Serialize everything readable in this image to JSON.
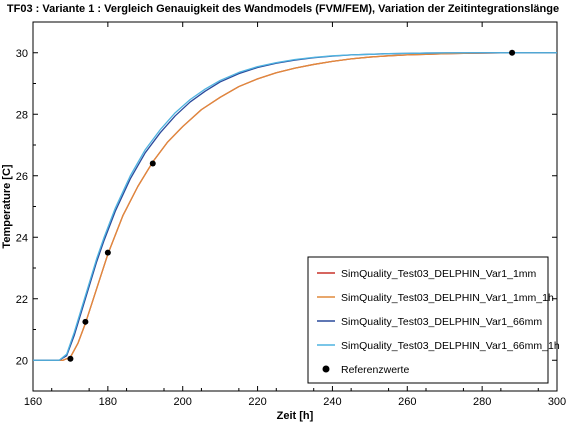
{
  "chart_data": {
    "type": "line",
    "title": "TF03 : Variante 1 : Vergleich Genauigkeit des Wandmodels (FVM/FEM), Variation der Zeitintegrationslänge",
    "xlabel": "Zeit [h]",
    "ylabel": "Temperature [C]",
    "xlim": [
      160,
      300
    ],
    "ylim": [
      19,
      31
    ],
    "xticks": [
      160,
      180,
      200,
      220,
      240,
      260,
      280,
      300
    ],
    "yticks": [
      20,
      22,
      24,
      26,
      28,
      30
    ],
    "grid": false,
    "legend_position": "bottom-right",
    "series": [
      {
        "name": "SimQuality_Test03_DELPHIN_Var1_1mm",
        "color": "#c8322a",
        "x": [
          160,
          168,
          170,
          172,
          174,
          176,
          178,
          180,
          184,
          188,
          192,
          196,
          200,
          205,
          210,
          215,
          220,
          225,
          230,
          235,
          240,
          245,
          250,
          255,
          260,
          265,
          270,
          275,
          280,
          285,
          290,
          295,
          300
        ],
        "y": [
          20.0,
          20.0,
          20.1,
          20.55,
          21.2,
          21.95,
          22.7,
          23.45,
          24.7,
          25.65,
          26.45,
          27.1,
          27.6,
          28.15,
          28.55,
          28.9,
          29.15,
          29.35,
          29.5,
          29.62,
          29.72,
          29.8,
          29.86,
          29.9,
          29.93,
          29.95,
          29.97,
          29.98,
          29.99,
          29.995,
          30.0,
          30.0,
          30.0
        ]
      },
      {
        "name": "SimQuality_Test03_DELPHIN_Var1_1mm_1h",
        "color": "#e08a3c",
        "x": [
          160,
          168,
          170,
          172,
          174,
          176,
          178,
          180,
          184,
          188,
          192,
          196,
          200,
          205,
          210,
          215,
          220,
          225,
          230,
          235,
          240,
          245,
          250,
          255,
          260,
          265,
          270,
          275,
          280,
          285,
          290,
          295,
          300
        ],
        "y": [
          20.0,
          20.0,
          20.1,
          20.55,
          21.2,
          21.95,
          22.7,
          23.45,
          24.7,
          25.65,
          26.45,
          27.1,
          27.6,
          28.15,
          28.55,
          28.9,
          29.15,
          29.35,
          29.5,
          29.62,
          29.72,
          29.8,
          29.86,
          29.9,
          29.93,
          29.95,
          29.97,
          29.98,
          29.99,
          29.995,
          30.0,
          30.0,
          30.0
        ]
      },
      {
        "name": "SimQuality_Test03_DELPHIN_Var1_66mm",
        "color": "#2a4a9c",
        "x": [
          160,
          167,
          169,
          171,
          173,
          175,
          177,
          179,
          182,
          186,
          190,
          194,
          198,
          202,
          206,
          210,
          215,
          220,
          225,
          230,
          235,
          240,
          245,
          250,
          255,
          260,
          265,
          270,
          280,
          290,
          300
        ],
        "y": [
          20.0,
          20.0,
          20.15,
          20.8,
          21.6,
          22.4,
          23.2,
          23.9,
          24.85,
          25.9,
          26.75,
          27.4,
          27.95,
          28.4,
          28.75,
          29.05,
          29.32,
          29.52,
          29.66,
          29.76,
          29.84,
          29.89,
          29.93,
          29.95,
          29.97,
          29.98,
          29.99,
          29.995,
          30.0,
          30.0,
          30.0
        ]
      },
      {
        "name": "SimQuality_Test03_DELPHIN_Var1_66mm_1h",
        "color": "#4fb3e0",
        "x": [
          160,
          167,
          169,
          171,
          173,
          175,
          177,
          179,
          182,
          186,
          190,
          194,
          198,
          202,
          206,
          210,
          215,
          220,
          225,
          230,
          235,
          240,
          245,
          250,
          255,
          260,
          265,
          270,
          280,
          290,
          300
        ],
        "y": [
          20.0,
          20.0,
          20.2,
          20.9,
          21.7,
          22.5,
          23.3,
          24.0,
          24.95,
          26.0,
          26.85,
          27.5,
          28.05,
          28.48,
          28.82,
          29.1,
          29.36,
          29.55,
          29.68,
          29.78,
          29.85,
          29.9,
          29.93,
          29.95,
          29.97,
          29.98,
          29.99,
          29.995,
          30.0,
          30.0,
          30.0
        ]
      }
    ],
    "reference": {
      "name": "Referenzwerte",
      "color": "#000000",
      "points": [
        {
          "x": 170,
          "y": 20.05
        },
        {
          "x": 174,
          "y": 21.25
        },
        {
          "x": 180,
          "y": 23.5
        },
        {
          "x": 192,
          "y": 26.4
        },
        {
          "x": 288,
          "y": 30.0
        }
      ]
    }
  }
}
